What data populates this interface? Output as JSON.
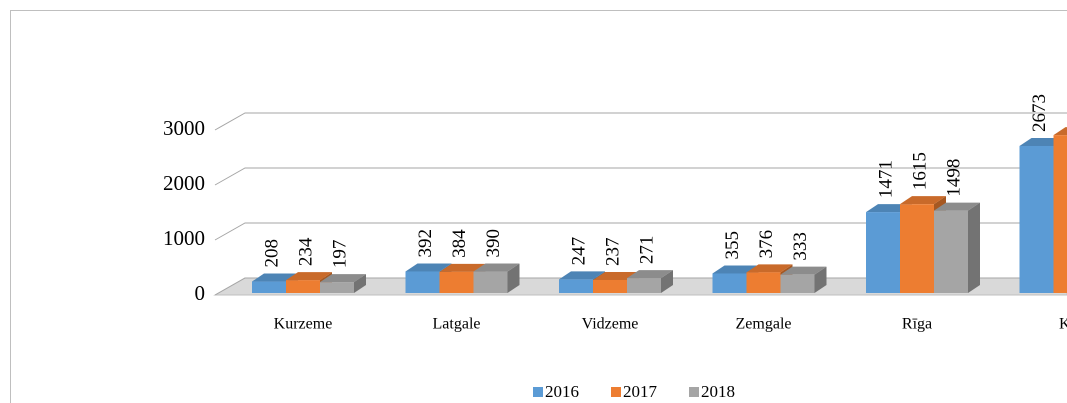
{
  "chart_data": {
    "type": "bar3d",
    "categories": [
      "Kurzeme",
      "Latgale",
      "Vidzeme",
      "Zemgale",
      "Rīga",
      "KO"
    ],
    "series": [
      {
        "name": "2016",
        "color": "#5B9BD5",
        "values": [
          208,
          392,
          247,
          355,
          1471,
          2673
        ],
        "value_labels": [
          "208",
          "392",
          "247",
          "355",
          "1471",
          "2673"
        ]
      },
      {
        "name": "2017",
        "color": "#ED7D31",
        "values": [
          234,
          384,
          237,
          376,
          1615,
          2870
        ],
        "value_labels": [
          "234",
          "384",
          "237",
          "376",
          "1615",
          null
        ]
      },
      {
        "name": "2018",
        "color": "#A5A5A5",
        "values": [
          197,
          390,
          271,
          333,
          1498,
          null
        ],
        "value_labels": [
          "197",
          "390",
          "271",
          "333",
          "1498",
          null
        ]
      }
    ],
    "ylim": [
      0,
      3000
    ],
    "yticks": [
      0,
      1000,
      2000,
      3000
    ],
    "grid": true,
    "legend": "bottom"
  }
}
